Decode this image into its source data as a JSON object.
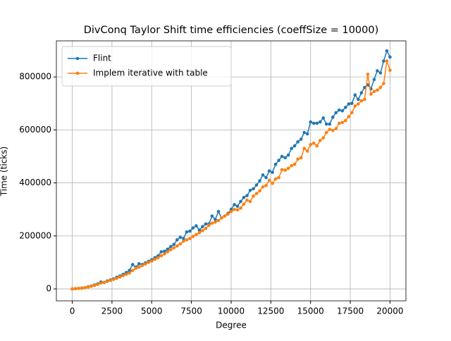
{
  "chart_data": {
    "type": "line",
    "title": "DivConq Taylor Shift time efficiencies (coeffSize = 10000)",
    "xlabel": "Degree",
    "ylabel": "Time (ticks)",
    "x": [
      0,
      200,
      400,
      600,
      800,
      1000,
      1200,
      1400,
      1600,
      1800,
      2000,
      2200,
      2400,
      2600,
      2800,
      3000,
      3200,
      3400,
      3600,
      3800,
      4000,
      4200,
      4400,
      4600,
      4800,
      5000,
      5200,
      5400,
      5600,
      5800,
      6000,
      6200,
      6400,
      6600,
      6800,
      7000,
      7200,
      7400,
      7600,
      7800,
      8000,
      8200,
      8400,
      8600,
      8800,
      9000,
      9200,
      9400,
      9600,
      9800,
      10000,
      10200,
      10400,
      10600,
      10800,
      11000,
      11200,
      11400,
      11600,
      11800,
      12000,
      12200,
      12400,
      12600,
      12800,
      13000,
      13200,
      13400,
      13600,
      13800,
      14000,
      14200,
      14400,
      14600,
      14800,
      15000,
      15200,
      15400,
      15600,
      15800,
      16000,
      16200,
      16400,
      16600,
      16800,
      17000,
      17200,
      17400,
      17600,
      17800,
      18000,
      18200,
      18400,
      18600,
      18800,
      19000,
      19200,
      19400,
      19600,
      19800,
      20000
    ],
    "series": [
      {
        "name": "Flint",
        "color": "#1f77b4",
        "values": [
          0,
          1000,
          2000,
          3000,
          5000,
          8000,
          11000,
          15000,
          19000,
          26000,
          24000,
          30000,
          34000,
          38000,
          44000,
          49000,
          55000,
          62000,
          70000,
          92000,
          82000,
          95000,
          92000,
          98000,
          104000,
          110000,
          118000,
          125000,
          140000,
          142000,
          150000,
          160000,
          168000,
          185000,
          195000,
          190000,
          215000,
          218000,
          230000,
          238000,
          222000,
          235000,
          245000,
          245000,
          275000,
          262000,
          292000,
          268000,
          275000,
          285000,
          300000,
          318000,
          312000,
          330000,
          345000,
          352000,
          372000,
          378000,
          392000,
          408000,
          430000,
          420000,
          445000,
          440000,
          470000,
          485000,
          500000,
          495000,
          505000,
          530000,
          540000,
          555000,
          565000,
          590000,
          585000,
          630000,
          625000,
          625000,
          630000,
          645000,
          622000,
          622000,
          648000,
          665000,
          675000,
          672000,
          685000,
          698000,
          700000,
          732000,
          715000,
          740000,
          760000,
          770000,
          755000,
          790000,
          823000,
          815000,
          860000,
          898000,
          875000
        ]
      },
      {
        "name": "Implem iterative with table",
        "color": "#ff7f0e",
        "values": [
          0,
          1000,
          2000,
          3000,
          5000,
          7000,
          10000,
          13000,
          17000,
          22000,
          25000,
          28000,
          32000,
          36000,
          40000,
          45000,
          50000,
          55000,
          60000,
          70000,
          78000,
          82000,
          88000,
          94000,
          100000,
          105000,
          112000,
          118000,
          125000,
          132000,
          140000,
          148000,
          155000,
          162000,
          170000,
          180000,
          185000,
          190000,
          198000,
          205000,
          212000,
          220000,
          228000,
          240000,
          248000,
          252000,
          258000,
          268000,
          275000,
          282000,
          292000,
          300000,
          298000,
          305000,
          320000,
          335000,
          330000,
          350000,
          360000,
          370000,
          385000,
          390000,
          410000,
          398000,
          415000,
          420000,
          450000,
          448000,
          455000,
          465000,
          470000,
          490000,
          495000,
          530000,
          520000,
          545000,
          550000,
          540000,
          560000,
          570000,
          590000,
          602000,
          598000,
          605000,
          625000,
          628000,
          635000,
          650000,
          665000,
          690000,
          698000,
          710000,
          715000,
          810000,
          735000,
          745000,
          750000,
          760000,
          775000,
          860000,
          825000
        ]
      }
    ],
    "xlim": [
      -1000,
      21000
    ],
    "xticks": [
      0,
      2500,
      5000,
      7500,
      10000,
      12500,
      15000,
      17500,
      20000
    ],
    "ylim": [
      -45000,
      936000
    ],
    "yticks": [
      0,
      200000,
      400000,
      600000,
      800000
    ],
    "grid": true,
    "legend": "upper left"
  }
}
